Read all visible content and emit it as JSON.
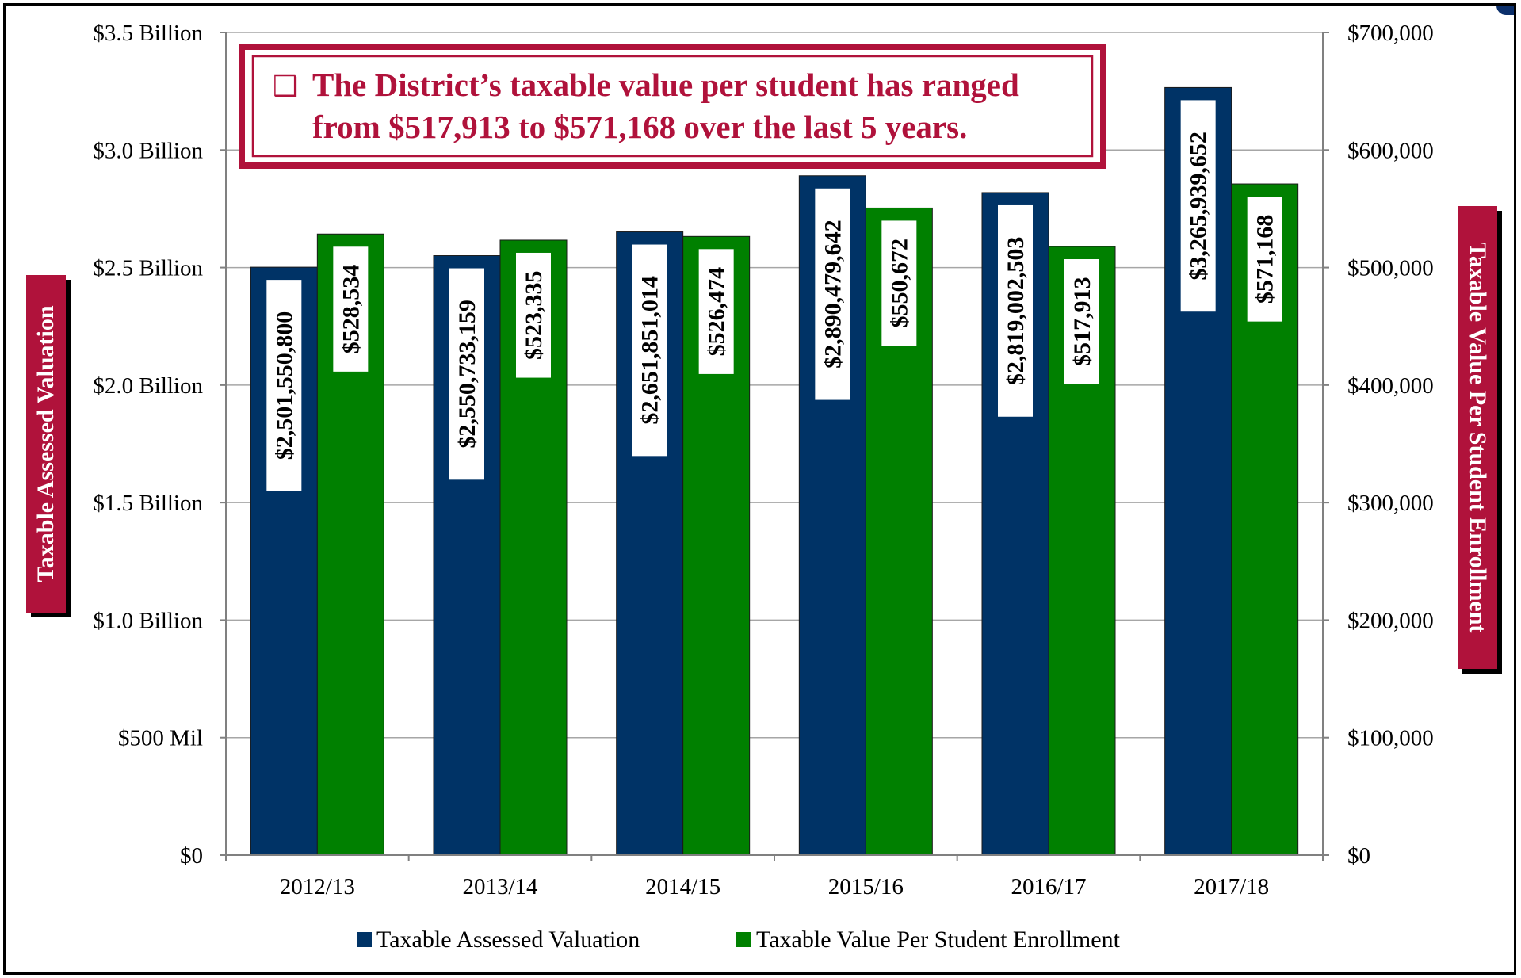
{
  "chart_data": {
    "type": "bar",
    "categories": [
      "2012/13",
      "2013/14",
      "2014/15",
      "2015/16",
      "2016/17",
      "2017/18"
    ],
    "series": [
      {
        "name": "Taxable Assessed Valuation",
        "axis": "left",
        "color": "#003366",
        "values": [
          2501550800,
          2550733159,
          2651851014,
          2890479642,
          2819002503,
          3265939652
        ],
        "labels": [
          "$2,501,550,800",
          "$2,550,733,159",
          "$2,651,851,014",
          "$2,890,479,642",
          "$2,819,002,503",
          "$3,265,939,652"
        ]
      },
      {
        "name": "Taxable Value Per Student Enrollment",
        "axis": "right",
        "color": "#008000",
        "values": [
          528534,
          523335,
          526474,
          550672,
          517913,
          571168
        ],
        "labels": [
          "$528,534",
          "$523,335",
          "$526,474",
          "$550,672",
          "$517,913",
          "$571,168"
        ]
      }
    ],
    "y_left": {
      "label": "Taxable Assessed Valuation",
      "range": [
        0,
        3500000000
      ],
      "ticks": [
        {
          "value": 0,
          "label": "$0"
        },
        {
          "value": 500000000,
          "label": "$500 Mil"
        },
        {
          "value": 1000000000,
          "label": "$1.0 Billion"
        },
        {
          "value": 1500000000,
          "label": "$1.5 Billion"
        },
        {
          "value": 2000000000,
          "label": "$2.0 Billion"
        },
        {
          "value": 2500000000,
          "label": "$2.5 Billion"
        },
        {
          "value": 3000000000,
          "label": "$3.0 Billion"
        },
        {
          "value": 3500000000,
          "label": "$3.5 Billion"
        }
      ]
    },
    "y_right": {
      "label": "Taxable Value Per Student Enrollment",
      "range": [
        0,
        700000
      ],
      "ticks": [
        {
          "value": 0,
          "label": "$0"
        },
        {
          "value": 100000,
          "label": "$100,000"
        },
        {
          "value": 200000,
          "label": "$200,000"
        },
        {
          "value": 300000,
          "label": "$300,000"
        },
        {
          "value": 400000,
          "label": "$400,000"
        },
        {
          "value": 500000,
          "label": "$500,000"
        },
        {
          "value": 600000,
          "label": "$600,000"
        },
        {
          "value": 700000,
          "label": "$700,000"
        }
      ]
    },
    "callout": {
      "bullet": "❑",
      "line1": "The District’s taxable value per student has ranged",
      "line2": "from $517,913 to $571,168 over the last 5 years."
    },
    "grid": true,
    "legend_position": "bottom"
  },
  "colors": {
    "accent_maroon": "#b0123b",
    "navy": "#003366",
    "green": "#008000",
    "grid": "#a6a6a6"
  }
}
